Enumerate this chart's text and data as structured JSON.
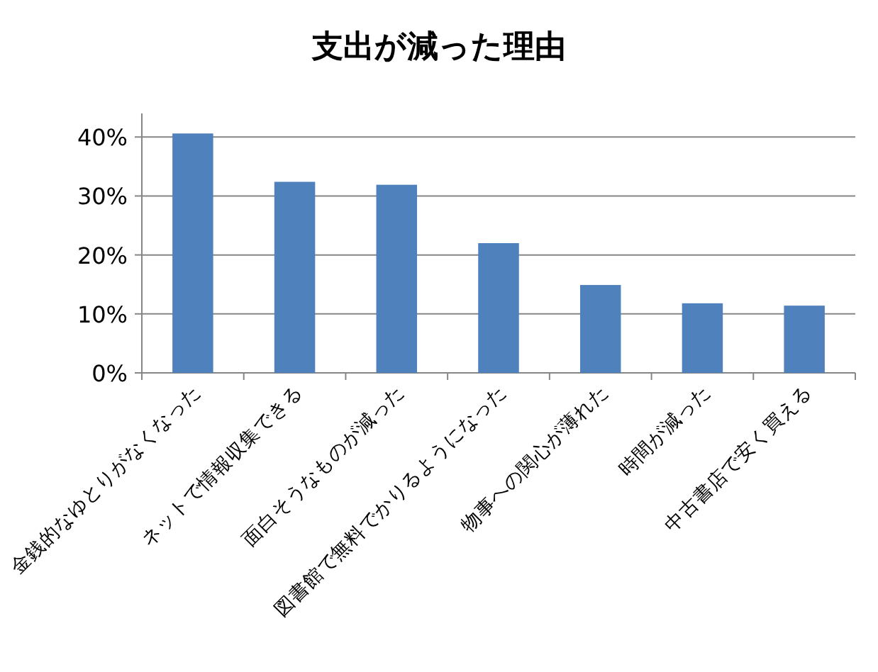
{
  "chart_data": {
    "type": "bar",
    "title": "支出が減った理由",
    "categories": [
      "金銭的なゆとりがなくなった",
      "ネットで情報収集できる",
      "面白そうなものが減った",
      "図書館で無料でかりるようになった",
      "物事への関心が薄れた",
      "時間が減った",
      "中古書店で安く買える"
    ],
    "values": [
      40.6,
      32.4,
      31.9,
      22.0,
      14.9,
      11.8,
      11.4
    ],
    "color": "#4f81bd",
    "ylim": [
      0,
      44
    ],
    "yticks": [
      {
        "value": 0,
        "label": "0%"
      },
      {
        "value": 10,
        "label": "10%"
      },
      {
        "value": 20,
        "label": "20%"
      },
      {
        "value": 30,
        "label": "30%"
      },
      {
        "value": 40,
        "label": "40%"
      }
    ],
    "grid": "y"
  }
}
